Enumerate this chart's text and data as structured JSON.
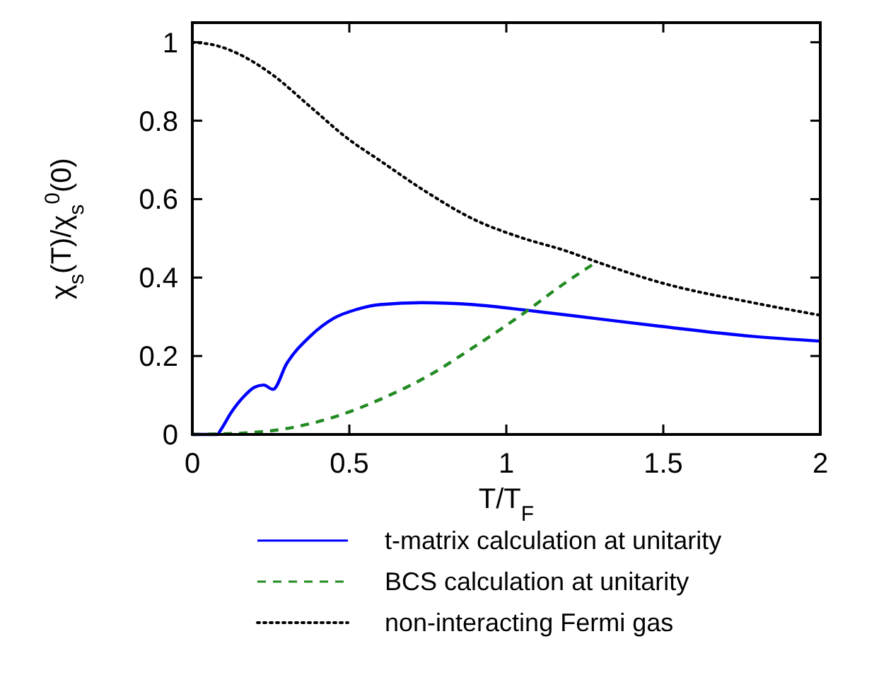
{
  "chart_data": {
    "type": "line",
    "xlabel": "T/T$_{F}$",
    "ylabel": "χ$_{s}$(T)/χ$_{s}$$^{0}$(0)",
    "xlim": [
      0,
      2
    ],
    "ylim": [
      0,
      1.05
    ],
    "xticks": [
      0,
      0.5,
      1,
      1.5,
      2
    ],
    "yticks": [
      0,
      0.2,
      0.4,
      0.6,
      0.8,
      1
    ],
    "grid": false,
    "legend": "bottom",
    "series": [
      {
        "name": "t-matrix calculation at unitarity",
        "color": "#0000ff",
        "line_style": "solid",
        "x": [
          0,
          0.079,
          0.093,
          0.123,
          0.168,
          0.197,
          0.227,
          0.257,
          0.3,
          0.375,
          0.45,
          0.524,
          0.598,
          0.73,
          0.895,
          1.073,
          1.28,
          1.488,
          1.785,
          2
        ],
        "values": [
          0,
          0,
          0.015,
          0.055,
          0.1,
          0.12,
          0.126,
          0.115,
          0.18,
          0.25,
          0.296,
          0.319,
          0.331,
          0.336,
          0.331,
          0.316,
          0.296,
          0.276,
          0.25,
          0.238
        ]
      },
      {
        "name": "BCS calculation at unitarity",
        "color": "#228b22",
        "line_style": "dashed",
        "x": [
          0,
          0.15,
          0.3,
          0.45,
          0.6,
          0.746,
          0.895,
          1.043,
          1.19,
          1.288
        ],
        "values": [
          0,
          0.003,
          0.015,
          0.044,
          0.09,
          0.147,
          0.222,
          0.302,
          0.388,
          0.44
        ]
      },
      {
        "name": "non-interacting Fermi gas",
        "color": "#000000",
        "line_style": "dotted",
        "x": [
          0,
          0.079,
          0.153,
          0.257,
          0.375,
          0.494,
          0.598,
          0.746,
          0.895,
          1.043,
          1.19,
          1.288,
          1.488,
          1.785,
          2
        ],
        "values": [
          1,
          0.991,
          0.968,
          0.916,
          0.836,
          0.755,
          0.698,
          0.618,
          0.549,
          0.503,
          0.468,
          0.44,
          0.388,
          0.336,
          0.304
        ]
      }
    ]
  }
}
